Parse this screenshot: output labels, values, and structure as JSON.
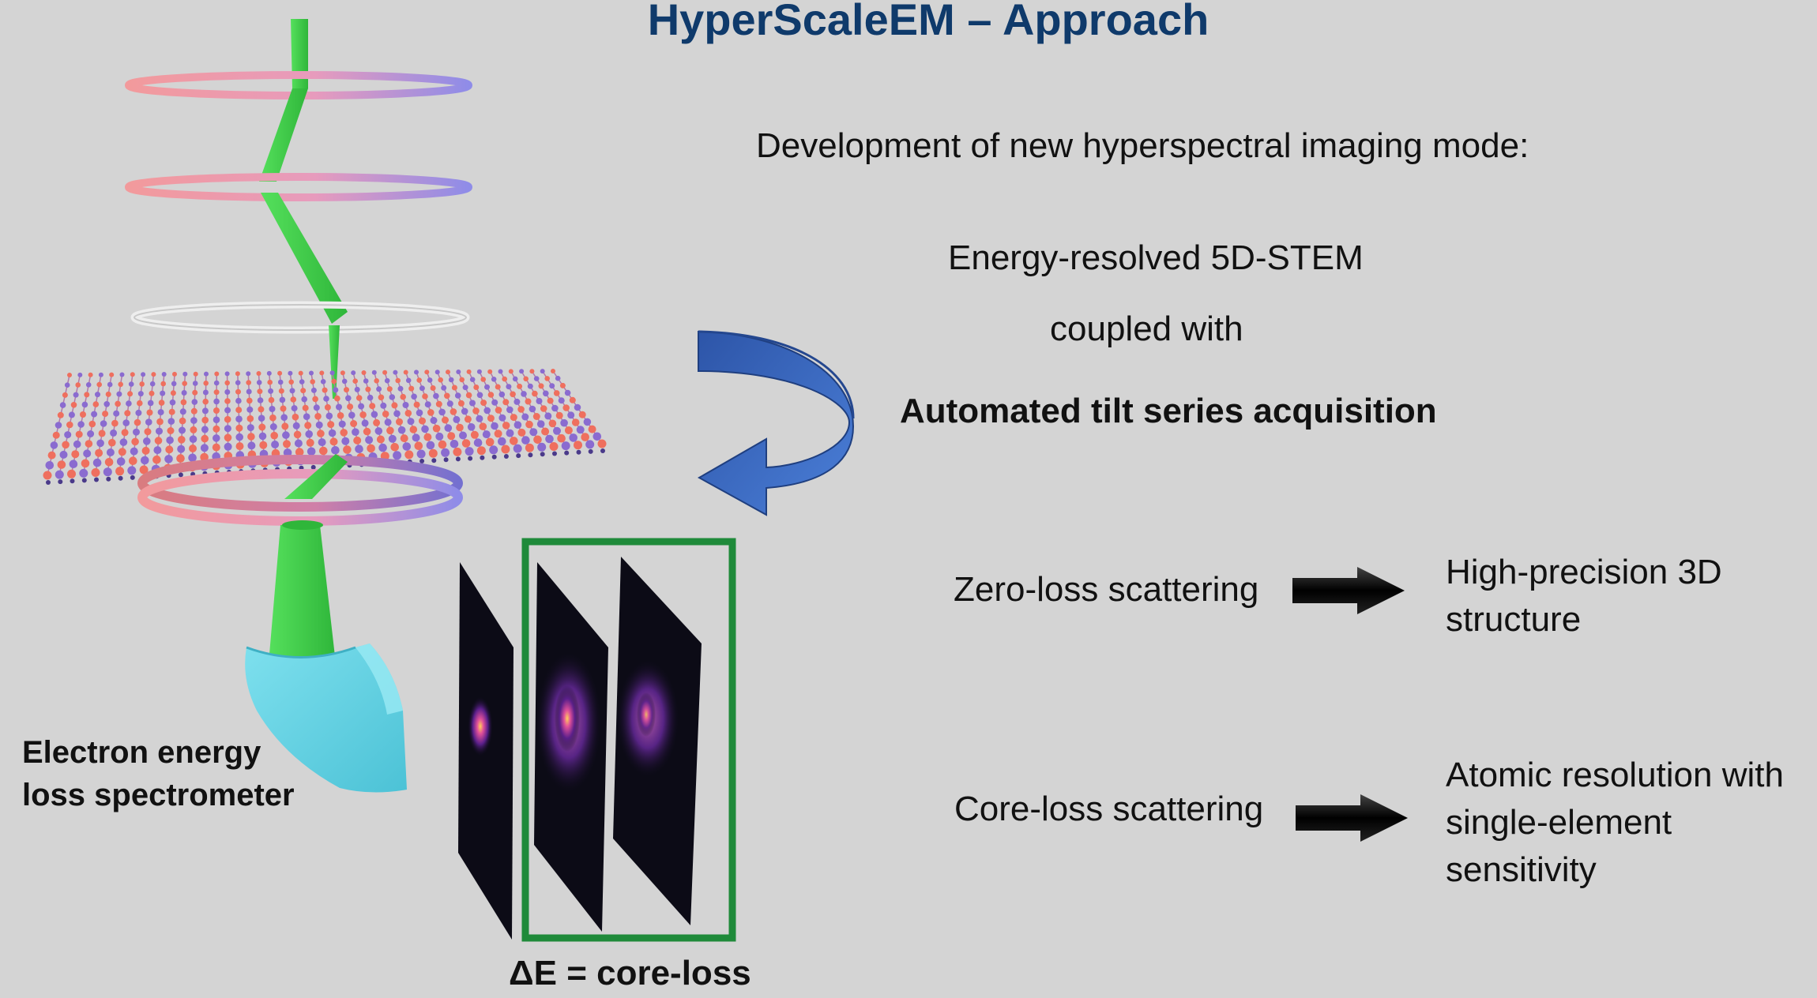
{
  "title": "HyperScaleEM – Approach",
  "development_heading": "Development of new hyperspectral imaging mode:",
  "mode_line_1": "Energy-resolved 5D-STEM",
  "mode_line_2": "coupled with",
  "mode_line_3": "Automated  tilt series acquisition",
  "rows": [
    {
      "input": "Zero-loss scattering",
      "output": "High-precision 3D structure"
    },
    {
      "input": "Core-loss scattering",
      "output": "Atomic resolution with single-element sensitivity"
    }
  ],
  "spectrometer_label": "Electron energy loss spectrometer",
  "selected_frame_label": "ΔE = core-loss",
  "colors": {
    "title": "#0f3a6b",
    "beam": "#3fd24a",
    "lens_pink": "#f0959a",
    "lens_violet": "#9b8ce6",
    "curved_arrow": "#3a68c0",
    "highlight_box": "#1f8a3a",
    "spectrometer": "#5dcfe0",
    "background": "#d4d4d4"
  },
  "icons": [
    "curved-arrow-icon",
    "right-arrow-icon"
  ]
}
